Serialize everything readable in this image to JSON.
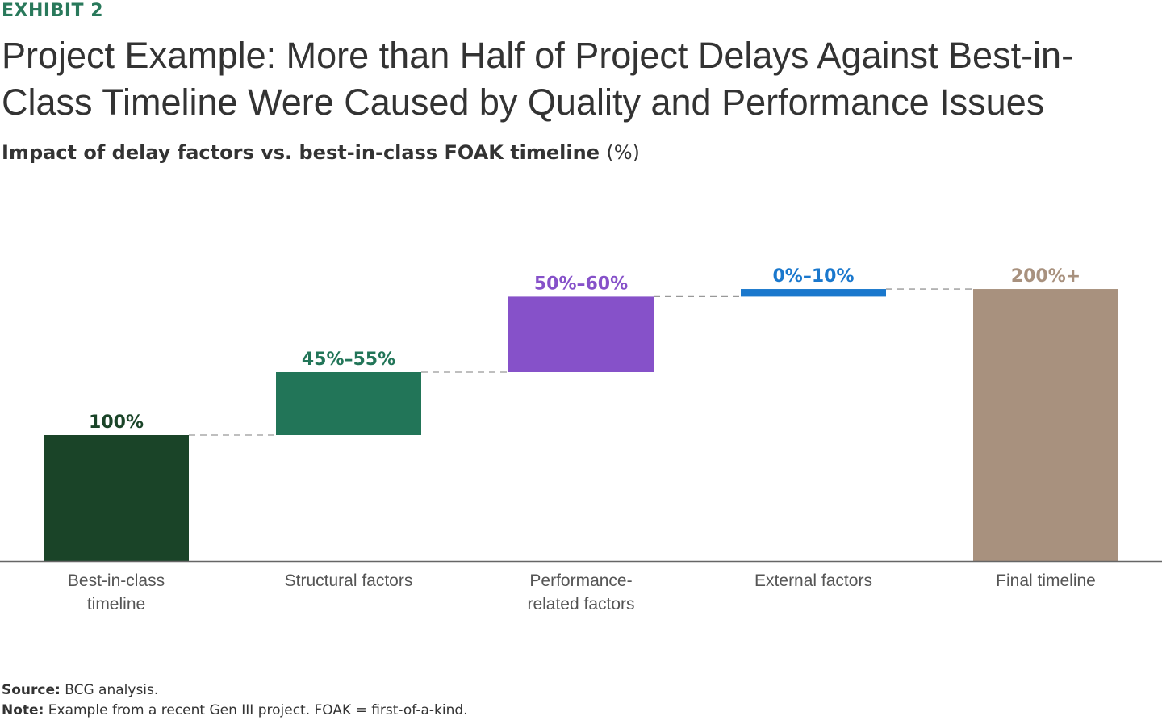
{
  "header": {
    "exhibit": "EXHIBIT 2",
    "title": "Project Example: More than Half of Project Delays Against Best-in-Class Timeline Were Caused by Quality and Performance Issues",
    "subtitle": "Impact of delay factors vs. best-in-class FOAK timeline",
    "subtitle_unit": "(%)"
  },
  "chart_data": {
    "type": "bar",
    "subtype": "waterfall",
    "title": "Impact of delay factors vs. best-in-class FOAK timeline (%)",
    "categories": [
      "Best-in-class timeline",
      "Structural factors",
      "Performance-related factors",
      "External factors",
      "Final timeline"
    ],
    "category_lines": [
      [
        "Best-in-class",
        "timeline"
      ],
      [
        "Structural factors"
      ],
      [
        "Performance-",
        "related factors"
      ],
      [
        "External factors"
      ],
      [
        "Final timeline"
      ]
    ],
    "labels": [
      "100%",
      "45%–55%",
      "50%–60%",
      "0%–10%",
      "200%+"
    ],
    "bars": [
      {
        "start": 0,
        "end": 100,
        "color": "#1a4428"
      },
      {
        "start": 100,
        "end": 150,
        "color": "#227558"
      },
      {
        "start": 150,
        "end": 210,
        "color": "#8651c9"
      },
      {
        "start": 210,
        "end": 216,
        "color": "#1a78cd"
      },
      {
        "start": 0,
        "end": 216,
        "color": "#a8917e"
      }
    ],
    "label_colors": [
      "#1a4428",
      "#227558",
      "#8651c9",
      "#1a78cd",
      "#a8917e"
    ],
    "connectors": "dashed",
    "grid": false,
    "y_axis_shown": false
  },
  "footer": {
    "source_label": "Source:",
    "source_text": "BCG analysis.",
    "note_label": "Note:",
    "note_text": "Example from a recent Gen III project. FOAK = first-of-a-kind."
  }
}
